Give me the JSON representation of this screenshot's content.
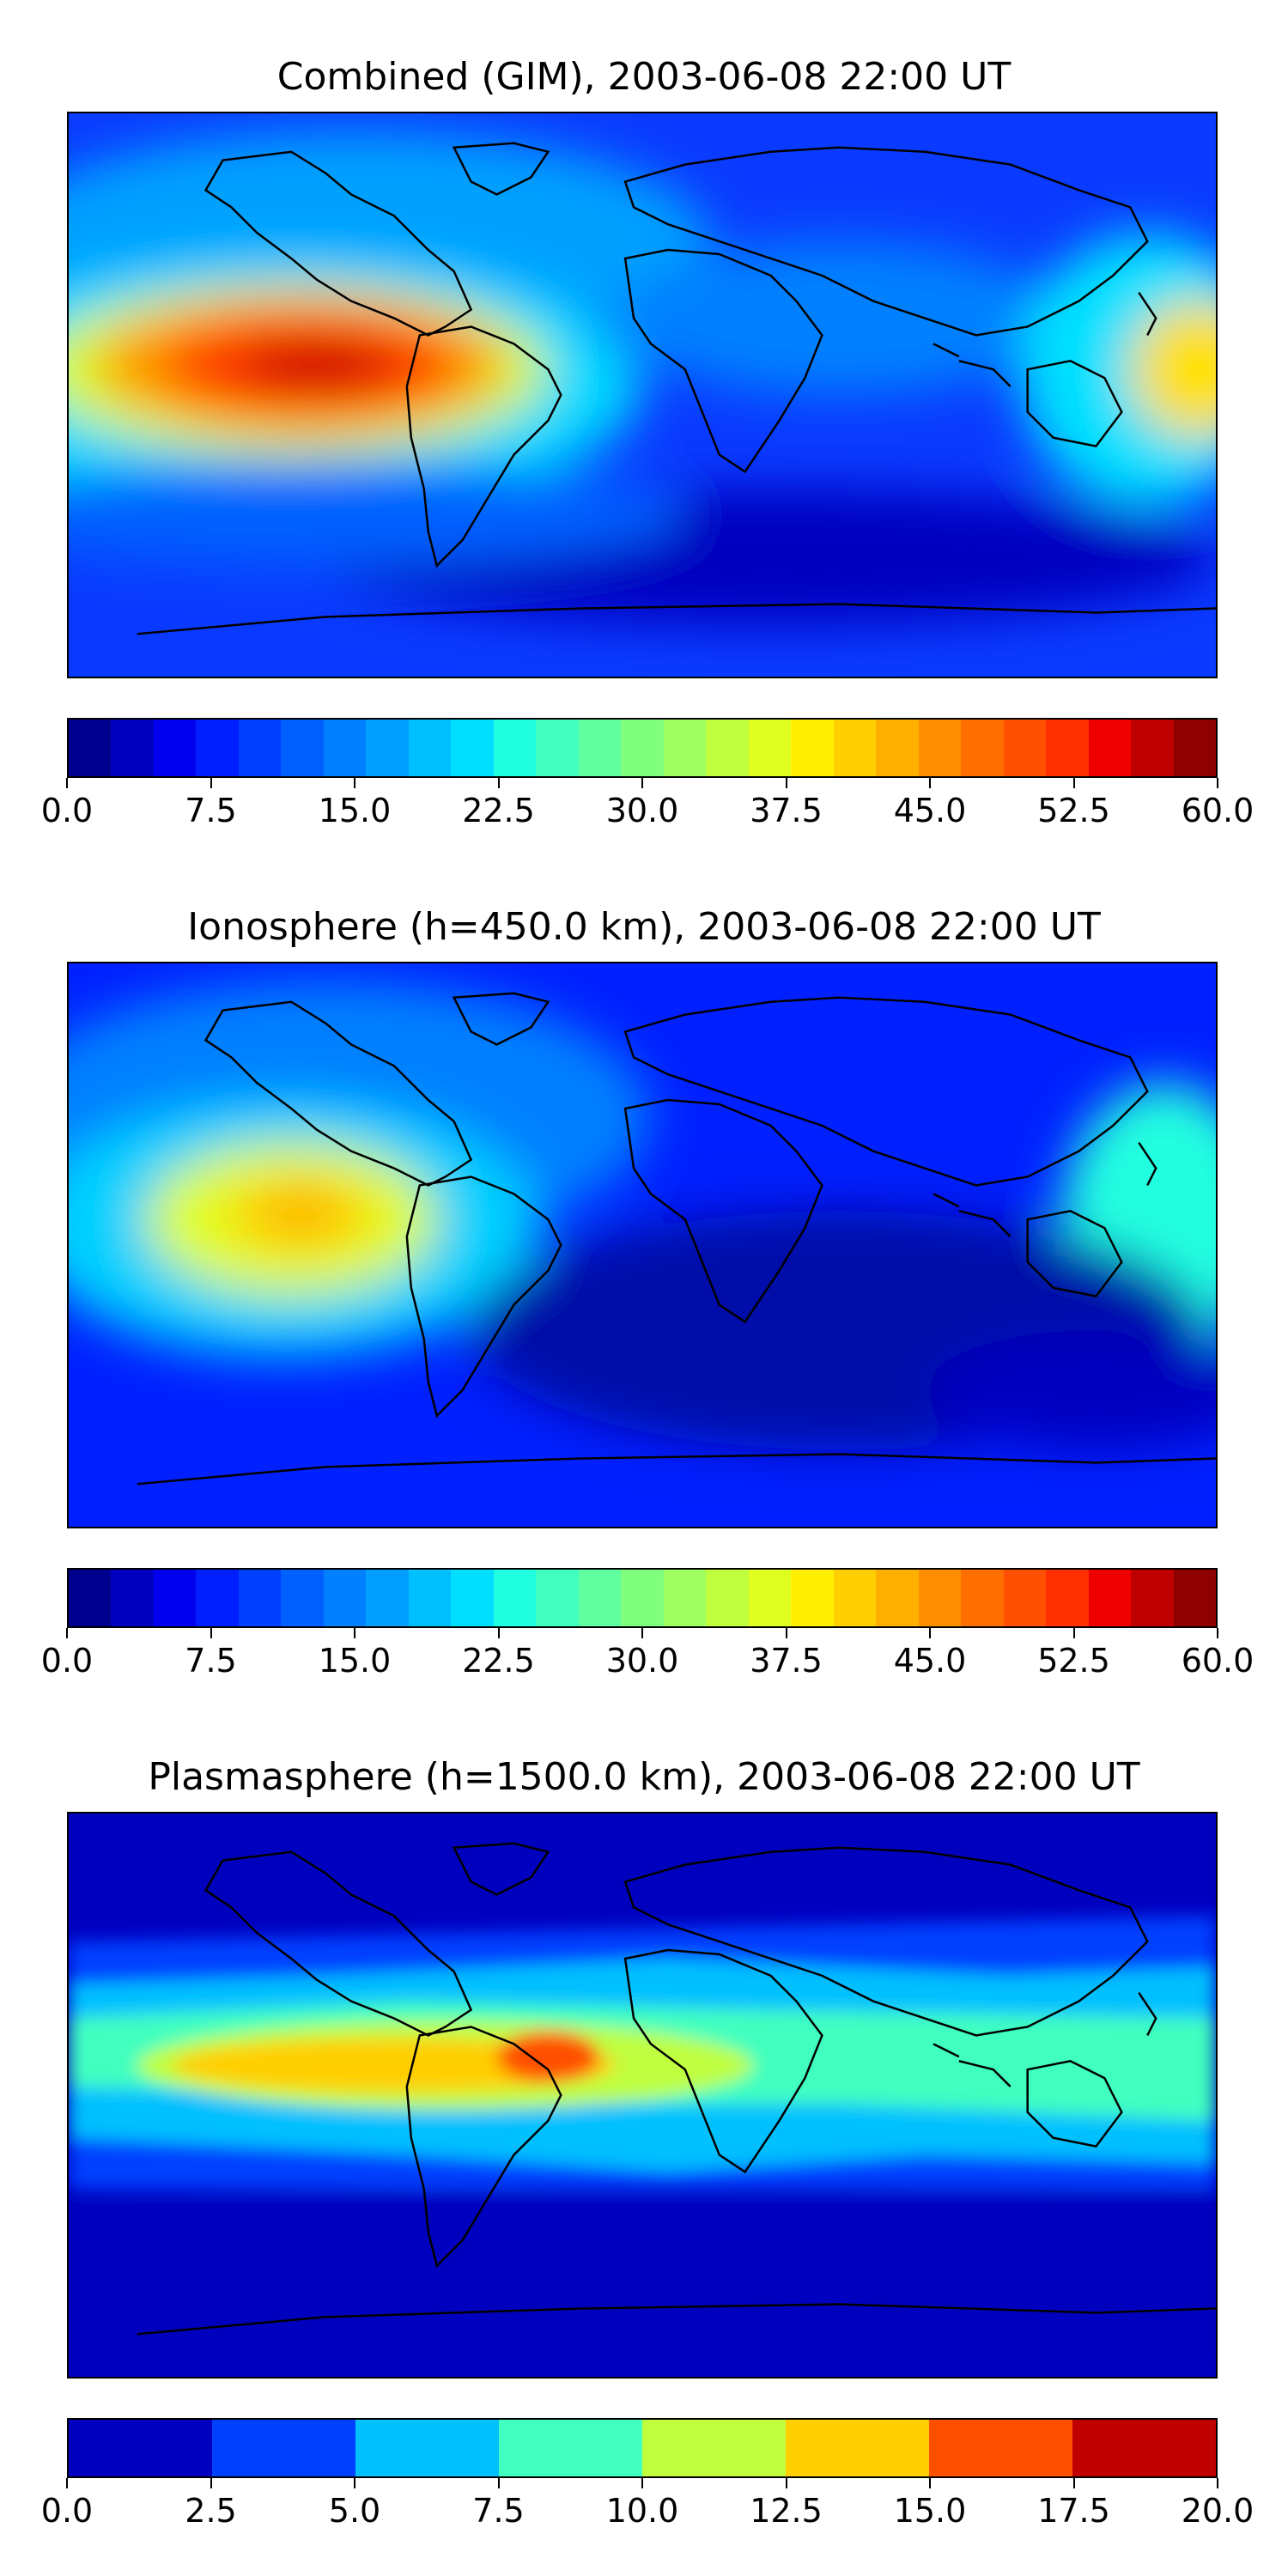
{
  "panels": [
    {
      "title": "Combined (GIM), 2003-06-08 22:00 UT",
      "colorbar": {
        "min": 0,
        "max": 60,
        "step": 2.5,
        "tick_labels": [
          "0.0",
          "7.5",
          "15.0",
          "22.5",
          "30.0",
          "37.5",
          "45.0",
          "52.5",
          "60.0"
        ],
        "colors": [
          "#00008f",
          "#0000bf",
          "#0000ef",
          "#001fff",
          "#003fff",
          "#005fff",
          "#007fff",
          "#009fff",
          "#00bfff",
          "#00dfff",
          "#20ffdf",
          "#40ffbf",
          "#60ff9f",
          "#80ff7f",
          "#9fff60",
          "#bfff40",
          "#dfff20",
          "#ffef00",
          "#ffcf00",
          "#ffaf00",
          "#ff8f00",
          "#ff6f00",
          "#ff4f00",
          "#ff2f00",
          "#ef0000",
          "#bf0000",
          "#8f0000"
        ]
      }
    },
    {
      "title": "Ionosphere  (h=450.0 km), 2003-06-08 22:00 UT",
      "colorbar": {
        "min": 0,
        "max": 60,
        "step": 2.5,
        "tick_labels": [
          "0.0",
          "7.5",
          "15.0",
          "22.5",
          "30.0",
          "37.5",
          "45.0",
          "52.5",
          "60.0"
        ],
        "colors": [
          "#00008f",
          "#0000bf",
          "#0000ef",
          "#001fff",
          "#003fff",
          "#005fff",
          "#007fff",
          "#009fff",
          "#00bfff",
          "#00dfff",
          "#20ffdf",
          "#40ffbf",
          "#60ff9f",
          "#80ff7f",
          "#9fff60",
          "#bfff40",
          "#dfff20",
          "#ffef00",
          "#ffcf00",
          "#ffaf00",
          "#ff8f00",
          "#ff6f00",
          "#ff4f00",
          "#ff2f00",
          "#ef0000",
          "#bf0000",
          "#8f0000"
        ]
      }
    },
    {
      "title": "Plasmasphere (h=1500.0 km), 2003-06-08 22:00 UT",
      "colorbar": {
        "min": 0,
        "max": 20,
        "step": 2.5,
        "tick_labels": [
          "0.0",
          "2.5",
          "5.0",
          "7.5",
          "10.0",
          "12.5",
          "15.0",
          "17.5",
          "20.0"
        ],
        "colors": [
          "#0000bf",
          "#0040ff",
          "#00c0ff",
          "#40ffbf",
          "#bfff40",
          "#ffcf00",
          "#ff5000",
          "#bf0000"
        ]
      }
    }
  ]
}
